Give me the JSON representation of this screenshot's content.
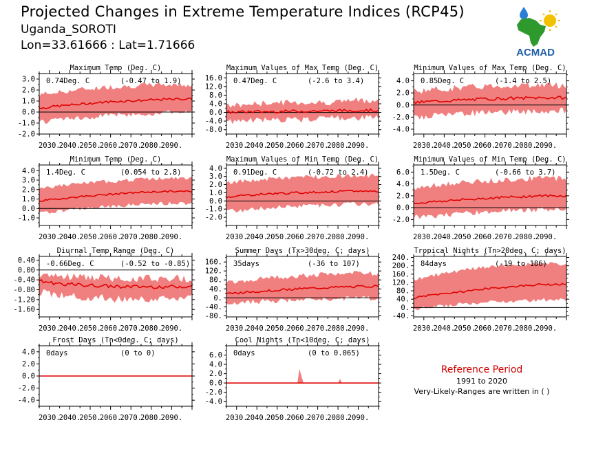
{
  "header": {
    "title": "Projected Changes in Extreme Temperature Indices (RCP45)",
    "subtitle": "Uganda_SOROTI",
    "coords": "Lon=33.61666 : Lat=1.71666"
  },
  "logo": {
    "text": "ACMAD"
  },
  "reference": {
    "title": "Reference Period",
    "years": "1991 to 2020",
    "note": "Very-Likely-Ranges are written in ( )"
  },
  "colors": {
    "band": "#f08080",
    "line": "#e00000",
    "zero": "#000000"
  },
  "x_ticks": [
    "2030.",
    "2040.",
    "2050.",
    "2060.",
    "2070.",
    "2080.",
    "2090."
  ],
  "chart_data": [
    {
      "type": "area",
      "title": "Maximum Temp (Deg. C)",
      "mean_label": "0.74Deg. C",
      "range_label": "(-0.47 to 1.9)",
      "xlim": [
        2025,
        2100
      ],
      "ylim": [
        -2.0,
        3.5
      ],
      "yticks": [
        3.0,
        2.0,
        1.0,
        0.0,
        -1.0,
        -2.0
      ],
      "ytick_labels": [
        "3.0",
        "2.0",
        "1.0",
        "0.0",
        "-1.0",
        "-2.0"
      ],
      "mean": [
        0.25,
        0.55,
        0.75,
        0.95,
        1.05,
        1.15,
        1.2
      ],
      "lower": [
        -0.9,
        -0.6,
        -0.4,
        -0.2,
        -0.1,
        0.0,
        0.05
      ],
      "upper": [
        1.4,
        1.7,
        2.0,
        2.2,
        2.3,
        2.4,
        2.4
      ],
      "noise": 0.3
    },
    {
      "type": "area",
      "title": "Maximum Values of Max Temp (Deg. C)",
      "mean_label": "0.47Deg. C",
      "range_label": "(-2.6 to 3.4)",
      "xlim": [
        2025,
        2100
      ],
      "ylim": [
        -10,
        18
      ],
      "yticks": [
        16,
        12,
        8,
        4,
        0,
        -4,
        -8
      ],
      "ytick_labels": [
        "16.0",
        "12.0",
        "8.0",
        "4.0",
        "0.0",
        "-4.0",
        "-8.0"
      ],
      "mean": [
        0.0,
        0.3,
        0.4,
        0.6,
        0.7,
        0.9,
        1.0
      ],
      "lower": [
        -4,
        -3,
        -3,
        -3,
        -2,
        -2,
        -2
      ],
      "upper": [
        2,
        3,
        4,
        4,
        4,
        5,
        5
      ],
      "noise": 1.8
    },
    {
      "type": "area",
      "title": "Minimum Values of Max Temp (Deg. C)",
      "mean_label": "0.85Deg. C",
      "range_label": "(-1.4 to 2.5)",
      "xlim": [
        2025,
        2100
      ],
      "ylim": [
        -4.8,
        5.2
      ],
      "yticks": [
        4,
        2,
        0,
        -2,
        -4
      ],
      "ytick_labels": [
        "4.0",
        "2.0",
        "0.0",
        "-2.0",
        "-4.0"
      ],
      "mean": [
        0.3,
        0.6,
        0.8,
        1.0,
        1.1,
        1.2,
        1.2
      ],
      "lower": [
        -1.8,
        -1.6,
        -1.3,
        -1.0,
        -0.9,
        -0.8,
        -0.7
      ],
      "upper": [
        2.0,
        2.3,
        2.6,
        2.9,
        3.0,
        3.1,
        3.0
      ],
      "noise": 0.7
    },
    {
      "type": "area",
      "title": "Minimum Temp (Deg. C)",
      "mean_label": "1.4Deg. C",
      "range_label": "(0.054 to 2.8)",
      "xlim": [
        2025,
        2100
      ],
      "ylim": [
        -1.8,
        4.6
      ],
      "yticks": [
        4,
        3,
        2,
        1,
        0,
        -1
      ],
      "ytick_labels": [
        "4.0",
        "3.0",
        "2.0",
        "1.0",
        "0.0",
        "-1.0"
      ],
      "mean": [
        0.7,
        1.0,
        1.3,
        1.5,
        1.7,
        1.8,
        1.8
      ],
      "lower": [
        -0.5,
        -0.2,
        0.1,
        0.3,
        0.5,
        0.6,
        0.6
      ],
      "upper": [
        2.0,
        2.3,
        2.6,
        2.8,
        3.0,
        3.1,
        3.1
      ],
      "noise": 0.25
    },
    {
      "type": "area",
      "title": "Maximum Values of Min Temp (Deg. C)",
      "mean_label": "0.91Deg. C",
      "range_label": "(-0.72 to 2.4)",
      "xlim": [
        2025,
        2100
      ],
      "ylim": [
        -3.0,
        4.4
      ],
      "yticks": [
        4,
        3,
        2,
        1,
        0,
        -1,
        -2
      ],
      "ytick_labels": [
        "4.0",
        "3.0",
        "2.0",
        "1.0",
        "0.0",
        "-1.0",
        "-2.0"
      ],
      "mean": [
        0.4,
        0.7,
        0.9,
        1.0,
        1.1,
        1.2,
        1.2
      ],
      "lower": [
        -1.2,
        -1.0,
        -0.7,
        -0.5,
        -0.4,
        -0.3,
        -0.3
      ],
      "upper": [
        2.0,
        2.3,
        2.6,
        2.8,
        2.9,
        3.0,
        3.0
      ],
      "noise": 0.35
    },
    {
      "type": "area",
      "title": "Minimum Values of Min Temp (Deg. C)",
      "mean_label": "1.5Deg. C",
      "range_label": "(-0.66 to 3.7)",
      "xlim": [
        2025,
        2100
      ],
      "ylim": [
        -3.0,
        7.2
      ],
      "yticks": [
        6,
        4,
        2,
        0,
        -2
      ],
      "ytick_labels": [
        "6.0",
        "4.0",
        "2.0",
        "0.0",
        "-2.0"
      ],
      "mean": [
        0.6,
        1.0,
        1.3,
        1.6,
        1.8,
        2.0,
        2.0
      ],
      "lower": [
        -1.5,
        -1.2,
        -0.8,
        -0.5,
        -0.3,
        -0.1,
        0.0
      ],
      "upper": [
        3.0,
        3.5,
        4.0,
        4.3,
        4.6,
        4.8,
        4.8
      ],
      "noise": 0.6
    },
    {
      "type": "area",
      "title": "Diurnal Temp Range (Deg. C)",
      "mean_label": "-0.66Deg. C",
      "range_label": "(-0.52 to -0.85)",
      "xlim": [
        2025,
        2100
      ],
      "ylim": [
        -1.9,
        0.55
      ],
      "yticks": [
        0.4,
        0.0,
        -0.4,
        -0.8,
        -1.2,
        -1.6
      ],
      "ytick_labels": [
        "0.40",
        "0.00",
        "-0.40",
        "-0.80",
        "-1.20",
        "-1.60"
      ],
      "mean": [
        -0.4,
        -0.55,
        -0.62,
        -0.66,
        -0.68,
        -0.68,
        -0.66
      ],
      "lower": [
        -0.8,
        -0.95,
        -1.05,
        -1.1,
        -1.1,
        -1.1,
        -1.05
      ],
      "upper": [
        -0.2,
        -0.3,
        -0.35,
        -0.4,
        -0.4,
        -0.4,
        -0.4
      ],
      "noise": 0.2
    },
    {
      "type": "area",
      "title": "Summer Days (Tx>30deg. C; days)",
      "mean_label": "35days",
      "range_label": "(-36 to 107)",
      "xlim": [
        2025,
        2100
      ],
      "ylim": [
        -85,
        185
      ],
      "yticks": [
        160,
        120,
        80,
        40,
        0,
        -40,
        -80
      ],
      "ytick_labels": [
        "160.",
        "120.",
        "80.",
        "40.",
        "0.",
        "-40.",
        "-80."
      ],
      "mean": [
        15,
        25,
        33,
        40,
        45,
        50,
        52
      ],
      "lower": [
        -20,
        -15,
        -10,
        -5,
        0,
        2,
        3
      ],
      "upper": [
        60,
        75,
        85,
        95,
        100,
        105,
        105
      ],
      "noise": 14
    },
    {
      "type": "area",
      "title": "Tropical Nights (Tn>20deg. C; days)",
      "mean_label": "84days",
      "range_label": "(-19 to 186)",
      "xlim": [
        2025,
        2100
      ],
      "ylim": [
        -45,
        245
      ],
      "yticks": [
        240,
        200,
        160,
        120,
        80,
        40,
        0,
        -40
      ],
      "ytick_labels": [
        "240.",
        "200.",
        "160.",
        "120.",
        "80.",
        "40.",
        "0.",
        "-40."
      ],
      "mean": [
        40,
        60,
        75,
        90,
        100,
        110,
        112
      ],
      "lower": [
        -10,
        5,
        20,
        30,
        35,
        40,
        40
      ],
      "upper": [
        120,
        150,
        170,
        190,
        200,
        205,
        205
      ],
      "noise": 12
    },
    {
      "type": "area",
      "title": "Frost Days (Tn<0deg. C; days)",
      "mean_label": "0days",
      "range_label": "(0 to 0)",
      "xlim": [
        2025,
        2100
      ],
      "ylim": [
        -5,
        5
      ],
      "yticks": [
        4,
        2,
        0,
        -2,
        -4
      ],
      "ytick_labels": [
        "4.0",
        "2.0",
        "0.0",
        "-2.0",
        "-4.0"
      ],
      "mean": [
        0,
        0,
        0,
        0,
        0,
        0,
        0
      ],
      "lower": [
        0,
        0,
        0,
        0,
        0,
        0,
        0
      ],
      "upper": [
        0,
        0,
        0,
        0,
        0,
        0,
        0
      ],
      "noise": 0
    },
    {
      "type": "area",
      "title": "Cool Nights (Tn<10deg. C; days)",
      "mean_label": "0days",
      "range_label": "(0 to 0.065)",
      "xlim": [
        2025,
        2100
      ],
      "ylim": [
        -5,
        8
      ],
      "yticks": [
        6,
        4,
        2,
        0,
        -2,
        -4
      ],
      "ytick_labels": [
        "6.0",
        "4.0",
        "2.0",
        "0.0",
        "-2.0",
        "-4.0"
      ],
      "mean": [
        0,
        0,
        0,
        0,
        0,
        0,
        0
      ],
      "lower": [
        0,
        0,
        0,
        0,
        0,
        0,
        0
      ],
      "upper": [
        0,
        0,
        0,
        0,
        0,
        0,
        0
      ],
      "noise": 0,
      "spikes": [
        {
          "x": 2061,
          "y": 3.0
        },
        {
          "x": 2062,
          "y": 1.5
        },
        {
          "x": 2081,
          "y": 0.9
        }
      ]
    }
  ]
}
